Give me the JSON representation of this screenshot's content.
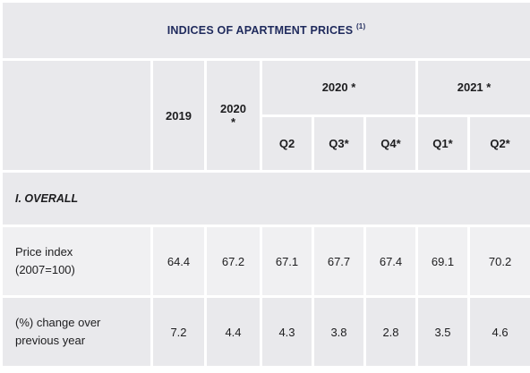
{
  "table": {
    "title": "INDICES OF APARTMENT PRICES",
    "title_note": "(1)",
    "header": {
      "year1": "2019",
      "year2_line1": "2020",
      "year2_line2": "*",
      "group1": "2020 *",
      "group2": "2021 *",
      "quarters": [
        "Q2",
        "Q3*",
        "Q4*",
        "Q1*",
        "Q2*"
      ]
    },
    "section": "I. OVERALL",
    "rows": [
      {
        "label_line1": "Price index",
        "label_line2": "(2007=100)",
        "values": [
          "64.4",
          "67.2",
          "67.1",
          "67.7",
          "67.4",
          "69.1",
          "70.2"
        ]
      },
      {
        "label_line1": "(%) change over",
        "label_line2": "previous year",
        "values": [
          "7.2",
          "4.4",
          "4.3",
          "3.8",
          "2.8",
          "3.5",
          "4.6"
        ]
      }
    ]
  }
}
